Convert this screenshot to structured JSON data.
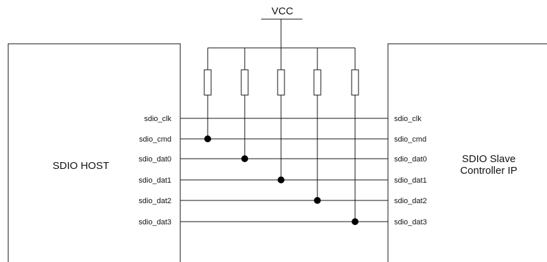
{
  "supply": {
    "label": "VCC"
  },
  "host": {
    "title": "SDIO HOST"
  },
  "slave": {
    "title_line1": "SDIO Slave",
    "title_line2": "Controller IP"
  },
  "signals": [
    {
      "host_label": "sdio_clk",
      "slave_label": "sdio_clk",
      "pullup": false
    },
    {
      "host_label": "sdio_cmd",
      "slave_label": "sdio_cmd",
      "pullup": true
    },
    {
      "host_label": "sdio_dat0",
      "slave_label": "sdio_dat0",
      "pullup": true
    },
    {
      "host_label": "sdio_dat1",
      "slave_label": "sdio_dat1",
      "pullup": true
    },
    {
      "host_label": "sdio_dat2",
      "slave_label": "sdio_dat2",
      "pullup": true
    },
    {
      "host_label": "sdio_dat3",
      "slave_label": "sdio_dat3",
      "pullup": true
    }
  ]
}
